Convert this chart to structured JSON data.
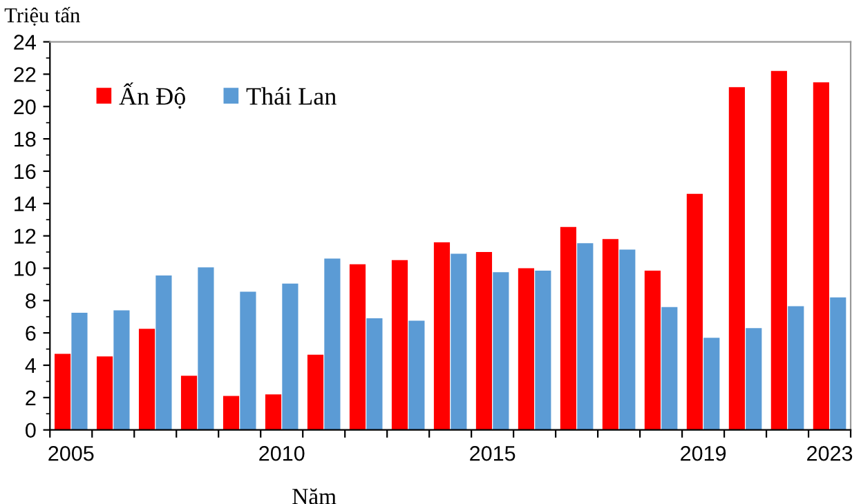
{
  "chart_data": {
    "type": "bar",
    "ylabel": "Triệu tấn",
    "xlabel": "Năm",
    "categories": [
      "2005",
      null,
      null,
      null,
      null,
      "2010",
      null,
      null,
      null,
      null,
      "2015",
      null,
      null,
      null,
      null,
      "2019",
      null,
      null,
      "2023"
    ],
    "series": [
      {
        "name": "Ấn Độ",
        "color": "#ff0000",
        "values": [
          4.7,
          4.55,
          6.25,
          3.35,
          2.1,
          2.2,
          4.65,
          10.25,
          10.5,
          11.6,
          11.0,
          10.0,
          12.55,
          11.8,
          9.85,
          14.6,
          21.2,
          22.2,
          21.5
        ]
      },
      {
        "name": "Thái Lan",
        "color": "#5b9bd5",
        "values": [
          7.25,
          7.4,
          9.55,
          10.05,
          8.55,
          9.05,
          10.6,
          6.9,
          6.75,
          10.9,
          9.75,
          9.85,
          11.55,
          11.15,
          7.6,
          5.7,
          6.3,
          7.65,
          8.2
        ]
      }
    ],
    "ylim": [
      0,
      24
    ],
    "yticks": [
      0,
      2,
      4,
      6,
      8,
      10,
      12,
      14,
      16,
      18,
      20,
      22,
      24
    ],
    "grid": false,
    "legend": "top left"
  }
}
